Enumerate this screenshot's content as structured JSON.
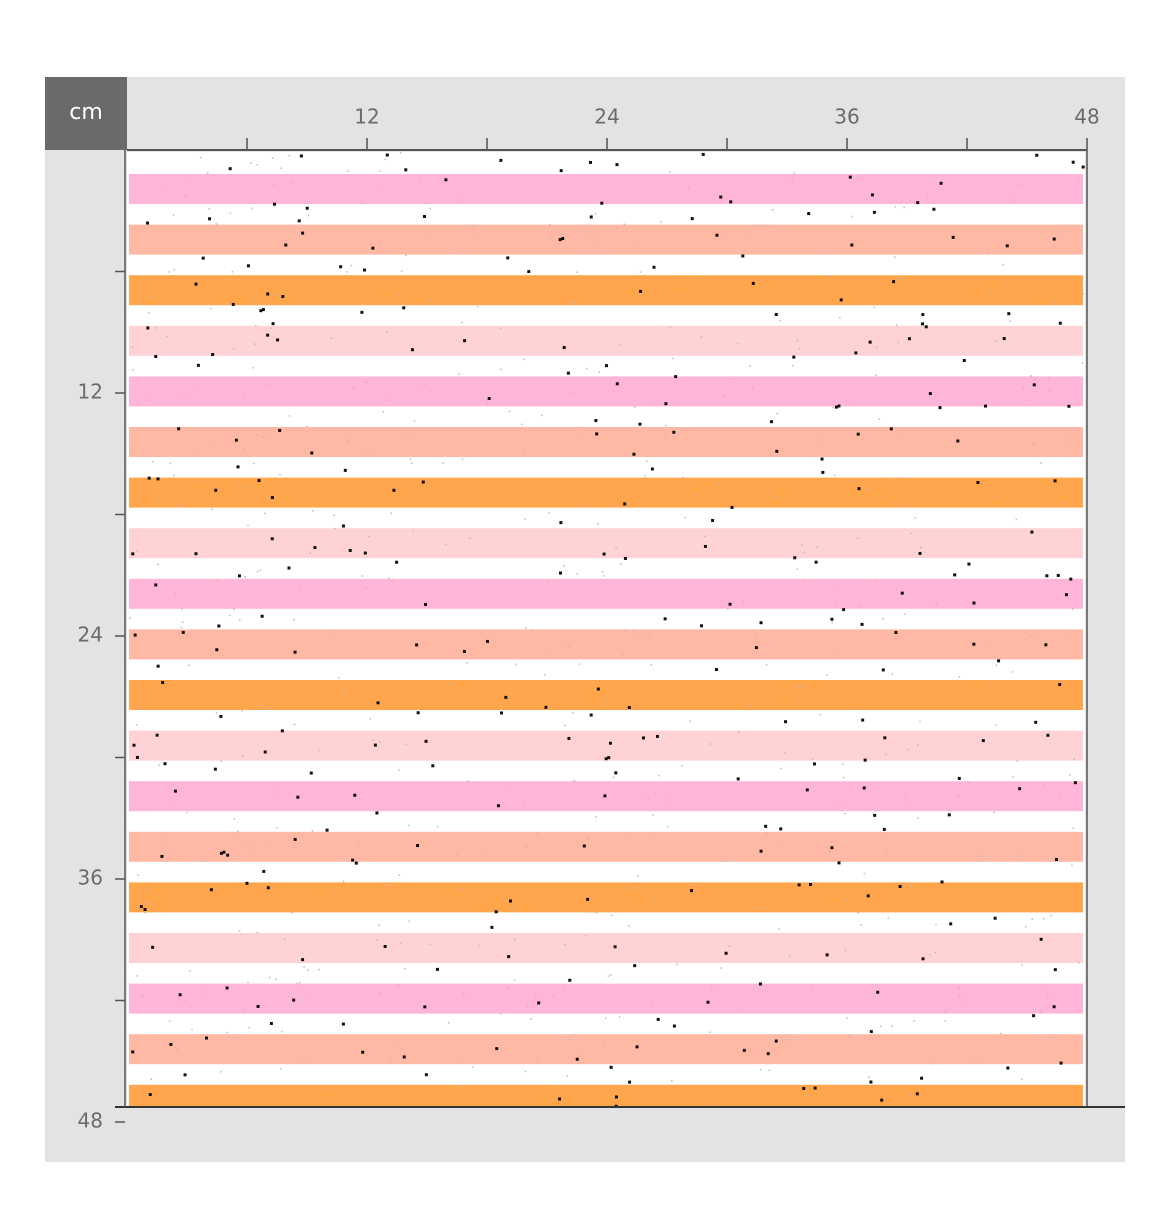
{
  "ruler": {
    "unit": "cm",
    "range": [
      0,
      48
    ],
    "x_ticks": [
      12,
      24,
      36,
      48
    ],
    "x_minor_ticks": [
      6,
      18,
      30,
      42
    ],
    "y_ticks": [
      12,
      24,
      36,
      48
    ],
    "y_minor_ticks": [
      6,
      18,
      30,
      42
    ]
  },
  "pattern": {
    "stripe_colors": [
      "#ffb5d8",
      "#ffb8a3",
      "#ffa64d",
      "#ffd3d6"
    ]
  }
}
